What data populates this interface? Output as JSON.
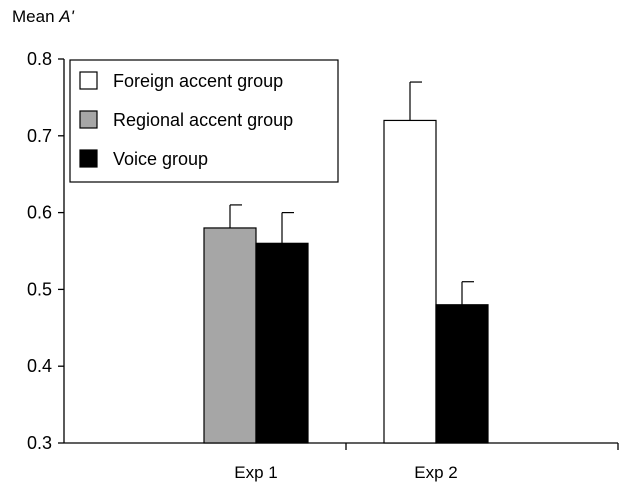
{
  "chart_data": {
    "type": "bar",
    "ylabel_prefix": "Mean ",
    "ylabel_symbol": "A'",
    "xlabel": "",
    "ylim": [
      0.3,
      0.8
    ],
    "yticks": [
      "0.3",
      "0.4",
      "0.5",
      "0.6",
      "0.7",
      "0.8"
    ],
    "categories": [
      "Exp 1",
      "Exp 2"
    ],
    "legend_position": "top-left",
    "series": [
      {
        "name": "Foreign accent group",
        "color": "#ffffff",
        "values": [
          null,
          0.72
        ],
        "error_upper": [
          null,
          0.77
        ]
      },
      {
        "name": "Regional accent group",
        "color": "#a6a6a6",
        "values": [
          0.58,
          null
        ],
        "error_upper": [
          0.61,
          null
        ]
      },
      {
        "name": "Voice group",
        "color": "#000000",
        "values": [
          0.56,
          0.48
        ],
        "error_upper": [
          0.6,
          0.51
        ]
      }
    ]
  }
}
